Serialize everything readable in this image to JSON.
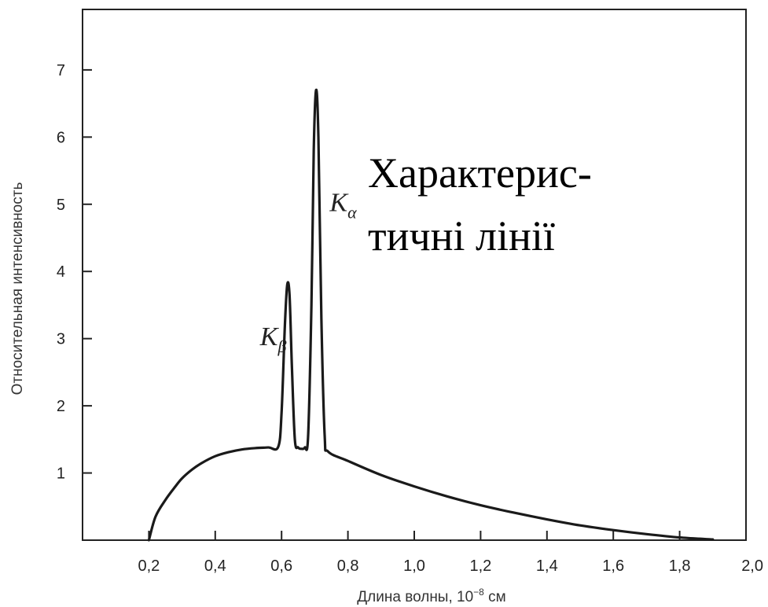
{
  "chart_data": {
    "type": "line",
    "title": "",
    "xlabel": "Длина волны, 10",
    "xlabel_exponent": "−8",
    "xlabel_unit": " см",
    "ylabel": "Относительная интенсивность",
    "xlim": [
      0.0,
      2.0
    ],
    "ylim": [
      0,
      7.9
    ],
    "x_ticks": [
      0.2,
      0.4,
      0.6,
      0.8,
      1.0,
      1.2,
      1.4,
      1.6,
      1.8,
      2.0
    ],
    "x_tick_labels": [
      "0,2",
      "0,4",
      "0,6",
      "0,8",
      "1,0",
      "1,2",
      "1,4",
      "1,6",
      "1,8",
      "2,0"
    ],
    "y_ticks": [
      1,
      2,
      3,
      4,
      5,
      6,
      7
    ],
    "y_tick_labels": [
      "1",
      "2",
      "3",
      "4",
      "5",
      "6",
      "7"
    ],
    "grid": false,
    "series": [
      {
        "x": [
          0.2,
          0.22,
          0.25,
          0.28,
          0.3,
          0.33,
          0.36,
          0.4,
          0.44,
          0.48,
          0.52,
          0.56,
          0.59,
          0.6,
          0.61,
          0.617,
          0.624,
          0.631,
          0.64,
          0.65,
          0.66,
          0.67,
          0.68,
          0.69,
          0.697,
          0.704,
          0.711,
          0.72,
          0.73,
          0.74,
          0.8,
          0.9,
          1.0,
          1.1,
          1.2,
          1.3,
          1.4,
          1.5,
          1.6,
          1.7,
          1.8,
          1.9
        ],
        "y": [
          0.0,
          0.35,
          0.6,
          0.8,
          0.92,
          1.05,
          1.15,
          1.25,
          1.31,
          1.35,
          1.37,
          1.38,
          1.39,
          1.9,
          3.2,
          3.8,
          3.65,
          2.6,
          1.5,
          1.38,
          1.36,
          1.38,
          1.55,
          3.5,
          5.8,
          6.7,
          6.0,
          3.3,
          1.55,
          1.32,
          1.18,
          0.97,
          0.8,
          0.65,
          0.52,
          0.41,
          0.31,
          0.22,
          0.15,
          0.09,
          0.04,
          0.01
        ]
      }
    ],
    "annotations": [
      {
        "id": "kb",
        "base": "K",
        "sub": "β",
        "x": 0.535,
        "y": 2.9
      },
      {
        "id": "ka",
        "base": "K",
        "sub": "α",
        "x": 0.745,
        "y": 4.9
      }
    ],
    "overlay_text": {
      "line1": "Характерис-",
      "line2": "тичні лінії"
    }
  }
}
